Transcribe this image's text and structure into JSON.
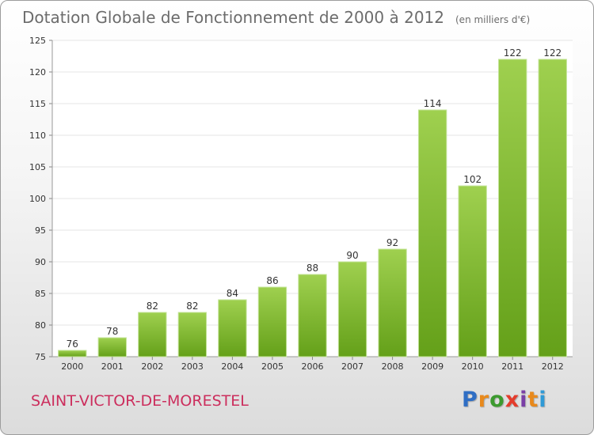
{
  "title": "Dotation Globale de Fonctionnement de 2000 à 2012",
  "unit_note": "(en milliers d'€)",
  "commune": "SAINT-VICTOR-DE-MORESTEL",
  "logo": {
    "text": "Proxiti",
    "letters": [
      {
        "ch": "P",
        "color": "#2f6ec4"
      },
      {
        "ch": "r",
        "color": "#e8891c"
      },
      {
        "ch": "o",
        "color": "#3c9a2f"
      },
      {
        "ch": "x",
        "color": "#e43c2c"
      },
      {
        "ch": "i",
        "color": "#7a3fa6"
      },
      {
        "ch": "t",
        "color": "#e8891c"
      },
      {
        "ch": "i",
        "color": "#2f9ad6"
      }
    ]
  },
  "colors": {
    "bar_top": "#9fd04f",
    "bar_bottom": "#64a019",
    "title": "#6c6c6c",
    "commune": "#cc2e5d",
    "grid": "#e5e5e5"
  },
  "chart_data": {
    "type": "bar",
    "title": "Dotation Globale de Fonctionnement de 2000 à 2012",
    "ylabel": "",
    "xlabel": "",
    "categories": [
      "2000",
      "2001",
      "2002",
      "2003",
      "2004",
      "2005",
      "2006",
      "2007",
      "2008",
      "2009",
      "2010",
      "2011",
      "2012"
    ],
    "values": [
      76,
      78,
      82,
      82,
      84,
      86,
      88,
      90,
      92,
      114,
      102,
      122,
      122
    ],
    "ylim": [
      75,
      125
    ],
    "yticks": [
      75,
      80,
      85,
      90,
      95,
      100,
      105,
      110,
      115,
      120,
      125
    ],
    "grid": true,
    "data_labels": true
  }
}
